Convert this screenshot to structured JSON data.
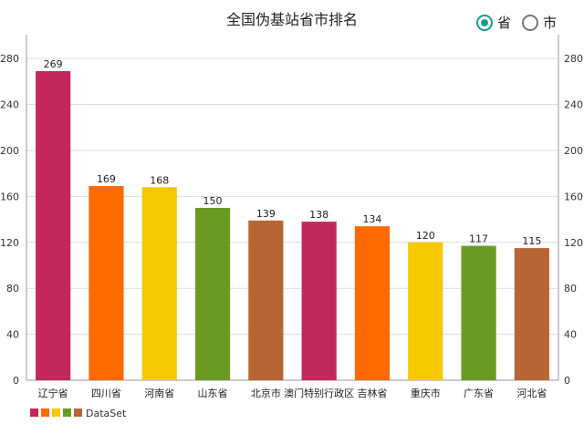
{
  "chart_data": {
    "type": "bar",
    "title": "全国伪基站省市排名",
    "categories": [
      "辽宁省",
      "四川省",
      "河南省",
      "山东省",
      "北京市",
      "澳门特别行政区",
      "吉林省",
      "重庆市",
      "广东省",
      "河北省"
    ],
    "series": [
      {
        "name": "DataSet",
        "values": [
          269,
          169,
          168,
          150,
          139,
          138,
          134,
          120,
          117,
          115
        ]
      }
    ],
    "bar_colors": [
      "#c2295a",
      "#ff6a00",
      "#f5c800",
      "#6a9a22",
      "#b86535",
      "#c2295a",
      "#ff6a00",
      "#f5c800",
      "#6a9a22",
      "#b86535"
    ],
    "yticks": [
      0,
      40,
      80,
      120,
      160,
      200,
      240,
      280
    ],
    "ylim": [
      0,
      296
    ],
    "grid": true,
    "legend": "bottom-left"
  },
  "toggle": {
    "options": [
      "省",
      "市"
    ],
    "selected": "省",
    "accent": "#1a9c8c"
  }
}
